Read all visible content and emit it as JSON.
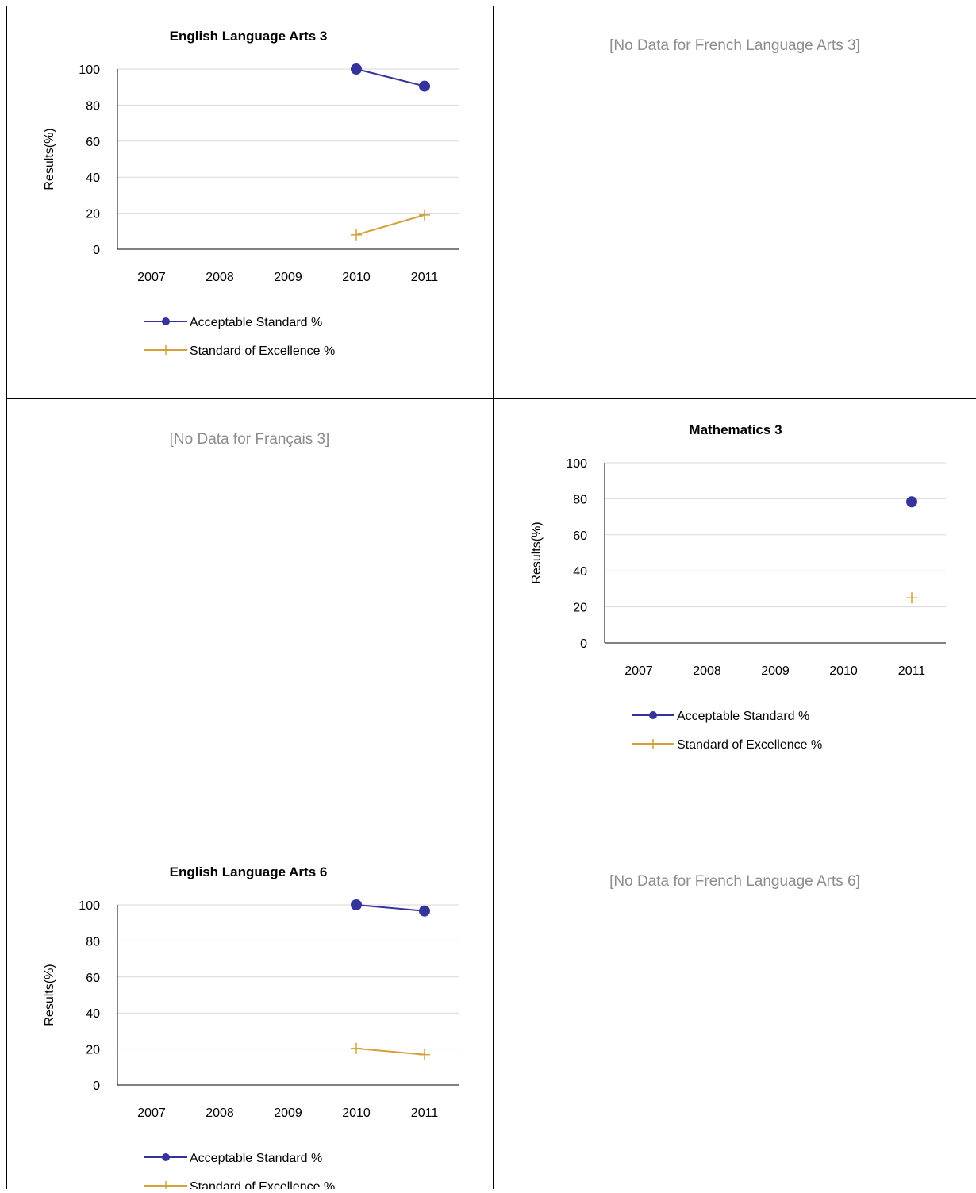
{
  "colors": {
    "acceptable": "#35349a",
    "excellence": "#d4a03a",
    "nodata_text": "#8c8c8c",
    "gridline": "#d9d9d9",
    "border": "#000000"
  },
  "panels": [
    {
      "type": "chart",
      "chart_index": 0
    },
    {
      "type": "nodata",
      "text": "[No Data for French Language Arts 3]"
    },
    {
      "type": "nodata",
      "text": "[No Data for Français 3]"
    },
    {
      "type": "chart",
      "chart_index": 1
    },
    {
      "type": "chart",
      "chart_index": 2
    },
    {
      "type": "nodata",
      "text": "[No Data for French Language Arts 6]"
    }
  ],
  "chart_data": [
    {
      "type": "line",
      "title": "English Language Arts 3",
      "xlabel": "",
      "ylabel": "Results(%)",
      "categories": [
        "2007",
        "2008",
        "2009",
        "2010",
        "2011"
      ],
      "ylim": [
        0,
        100
      ],
      "yticks": [
        0,
        20,
        40,
        60,
        80,
        100
      ],
      "grid": true,
      "legend_position": "bottom",
      "series": [
        {
          "name": "Acceptable Standard %",
          "marker": "circle",
          "color": "#35349a",
          "values": [
            null,
            null,
            null,
            100,
            90.5
          ]
        },
        {
          "name": "Standard of Excellence %",
          "marker": "plus",
          "color": "#d4a03a",
          "values": [
            null,
            null,
            null,
            8,
            19
          ]
        }
      ]
    },
    {
      "type": "line",
      "title": "Mathematics 3",
      "xlabel": "",
      "ylabel": "Results(%)",
      "categories": [
        "2007",
        "2008",
        "2009",
        "2010",
        "2011"
      ],
      "ylim": [
        0,
        100
      ],
      "yticks": [
        0,
        20,
        40,
        60,
        80,
        100
      ],
      "grid": true,
      "legend_position": "bottom",
      "series": [
        {
          "name": "Acceptable Standard %",
          "marker": "circle",
          "color": "#35349a",
          "values": [
            null,
            null,
            null,
            null,
            78.3
          ]
        },
        {
          "name": "Standard of Excellence %",
          "marker": "plus",
          "color": "#d4a03a",
          "values": [
            null,
            null,
            null,
            null,
            25
          ]
        }
      ]
    },
    {
      "type": "line",
      "title": "English Language Arts 6",
      "xlabel": "",
      "ylabel": "Results(%)",
      "categories": [
        "2007",
        "2008",
        "2009",
        "2010",
        "2011"
      ],
      "ylim": [
        0,
        100
      ],
      "yticks": [
        0,
        20,
        40,
        60,
        80,
        100
      ],
      "grid": true,
      "legend_position": "bottom",
      "series": [
        {
          "name": "Acceptable Standard %",
          "marker": "circle",
          "color": "#35349a",
          "values": [
            null,
            null,
            null,
            100,
            96.6
          ]
        },
        {
          "name": "Standard of Excellence %",
          "marker": "plus",
          "color": "#d4a03a",
          "values": [
            null,
            null,
            null,
            20.3,
            16.9
          ]
        }
      ]
    }
  ]
}
